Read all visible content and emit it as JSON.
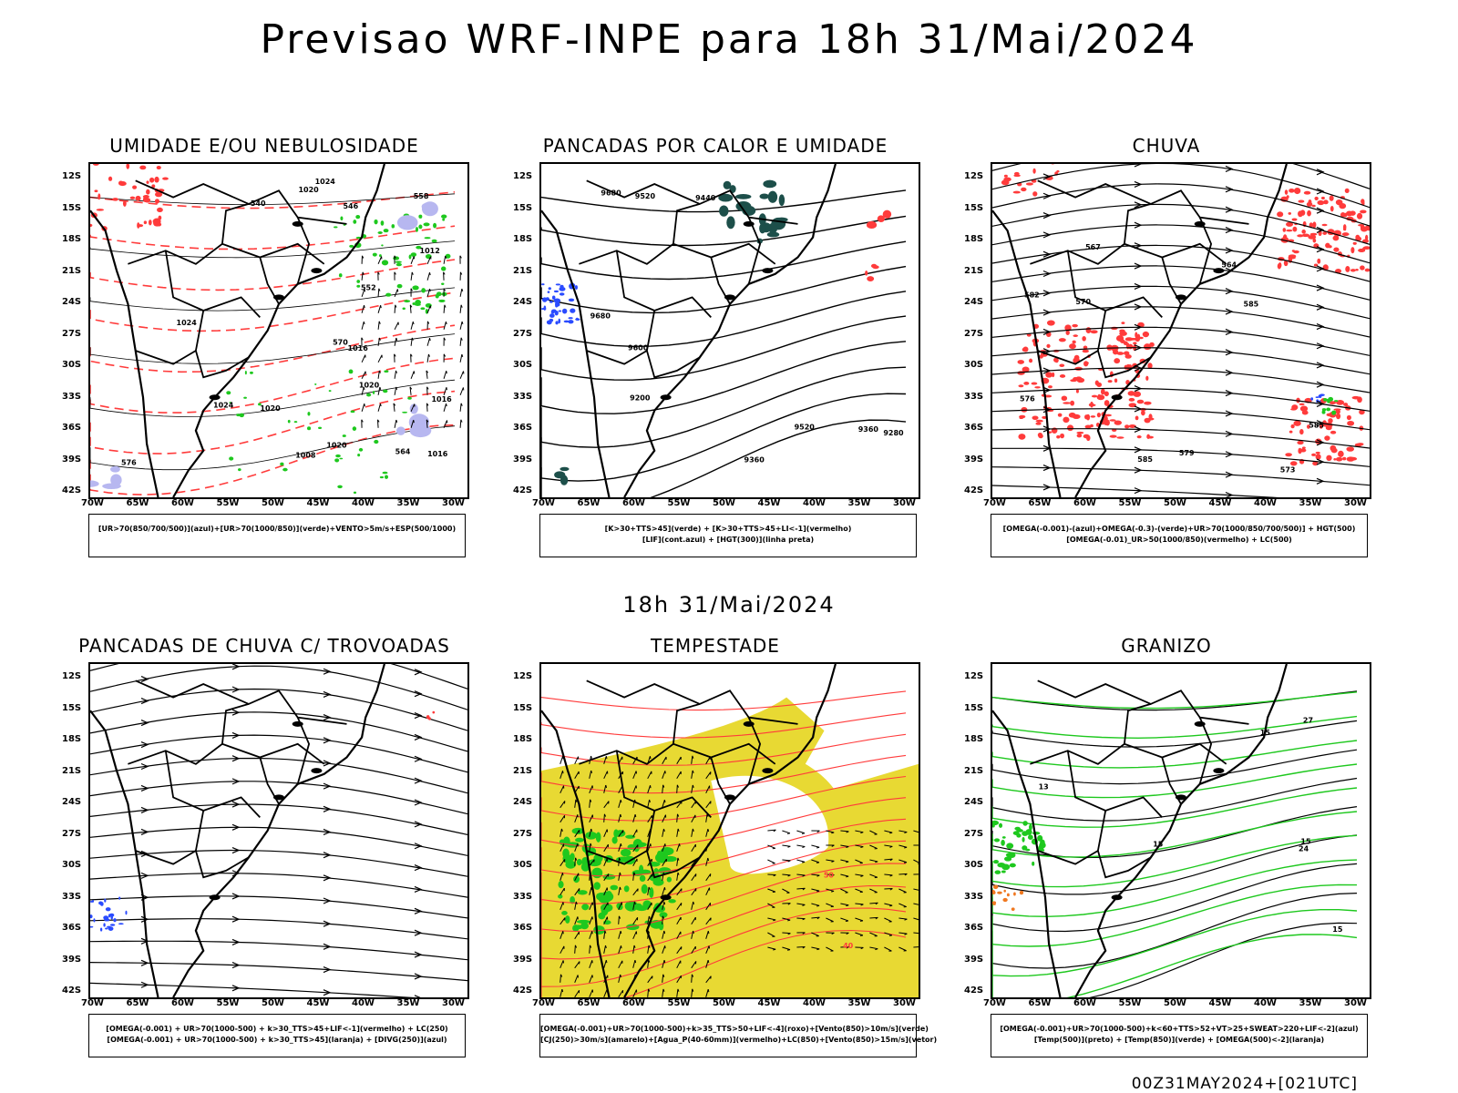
{
  "header": {
    "title": "Previsao WRF-INPE  para 18h 31/Mai/2024",
    "mid_time": "18h 31/Mai/2024",
    "footer": "00Z31MAY2024+[021UTC]"
  },
  "axes": {
    "lat_labels": [
      "12S",
      "15S",
      "18S",
      "21S",
      "24S",
      "27S",
      "30S",
      "33S",
      "36S",
      "39S",
      "42S"
    ],
    "lon_labels": [
      "70W",
      "65W",
      "60W",
      "55W",
      "50W",
      "45W",
      "40W",
      "35W",
      "30W"
    ]
  },
  "colors": {
    "red": "#ff3b3b",
    "green": "#1ec81e",
    "blue": "#2a4bff",
    "yellow": "#e8d933",
    "darkgreen": "#1d4f4a",
    "lavender": "#b7b7f0",
    "orange": "#f07820"
  },
  "panels": [
    {
      "title": "UMIDADE E/OU NEBULOSIDADE",
      "legend": [
        "[UR>70(850/700/500)](azul)+[UR>70(1000/850)](verde)+VENTO>5m/s+ESP(500/1000)"
      ],
      "contour_labels": [
        "1016",
        "1012",
        "1016",
        "1016",
        "1020",
        "1024",
        "1020",
        "1020",
        "1024",
        "1024",
        "1020",
        "1008",
        "576",
        "570",
        "564",
        "558",
        "552",
        "546",
        "540"
      ]
    },
    {
      "title": "PANCADAS POR CALOR E UMIDADE",
      "legend": [
        "[K>30+TTS>45](verde) + [K>30+TTS>45+LI<-1](vermelho)",
        "[LIF](cont.azul) + [HGT(300)](linha preta)"
      ],
      "contour_labels": [
        "9680",
        "9680",
        "9600",
        "9520",
        "9520",
        "9440",
        "9360",
        "9360",
        "9280",
        "9200"
      ]
    },
    {
      "title": "CHUVA",
      "legend": [
        "[OMEGA(-0.001)-(azul)+OMEGA(-0.3)-(verde)+UR>70(1000/850/700/500)] + HGT(500)",
        "[OMEGA(-0.01)_UR>50(1000/850)(vermelho) + LC(500)"
      ],
      "contour_labels": [
        "585",
        "585",
        "585",
        "582",
        "579",
        "576",
        "573",
        "570",
        "567",
        "564"
      ]
    },
    {
      "title": "PANCADAS DE CHUVA C/ TROVOADAS",
      "legend": [
        "[OMEGA(-0.001) + UR>70(1000-500) + k>30_TTS>45+LIF<-1](vermelho) + LC(250)",
        "[OMEGA(-0.001) + UR>70(1000-500) + k>30_TTS>45](laranja) + [DIVG(250)](azul)"
      ],
      "contour_labels": []
    },
    {
      "title": "TEMPESTADE",
      "legend": [
        "[OMEGA(-0.001)+UR>70(1000-500)+k>35_TTS>50+LIF<-4](roxo)+[Vento(850)>10m/s](verde)",
        "[CJ(250)>30m/s](amarelo)+[Agua_P(40-60mm)](vermelho)+LC(850)+[Vento(850)>15m/s](vetor)"
      ],
      "contour_labels": [
        "40",
        "50"
      ]
    },
    {
      "title": "GRANIZO",
      "legend": [
        "[OMEGA(-0.001)+UR>70(1000-500)+k<60+TTS>52+VT>25+SWEAT>220+LIF<-2](azul)",
        "[Temp(500)](preto) + [Temp(850)](verde) + [OMEGA(500)<-2](laranja)"
      ],
      "contour_labels": [
        "15",
        "13",
        "15",
        "15",
        "15",
        "24",
        "27"
      ]
    }
  ]
}
